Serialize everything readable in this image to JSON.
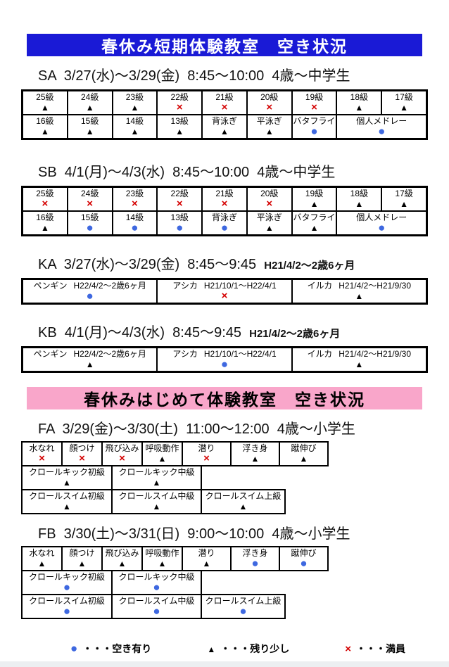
{
  "banners": {
    "short_term": "春休み短期体験教室　空き状況",
    "beginner": "春休みはじめて体験教室　空き状況"
  },
  "colors": {
    "short_term_banner": "#1a1ad6",
    "beginner_banner": "#f9a6ca",
    "available_circle": "#3e68e0",
    "few_triangle": "#000000",
    "full_cross": "#d40000"
  },
  "sections": {
    "sa": {
      "title": "SA  3/27(水)～3/29(金)  8:45～10:00  ",
      "age": "4歳～中学生",
      "row1": [
        {
          "label": "25級",
          "status": "triangle"
        },
        {
          "label": "24級",
          "status": "triangle"
        },
        {
          "label": "23級",
          "status": "triangle"
        },
        {
          "label": "22級",
          "status": "cross"
        },
        {
          "label": "21級",
          "status": "cross"
        },
        {
          "label": "20級",
          "status": "cross"
        },
        {
          "label": "19級",
          "status": "cross"
        },
        {
          "label": "18級",
          "status": "triangle"
        },
        {
          "label": "17級",
          "status": "triangle"
        }
      ],
      "row2": [
        {
          "label": "16級",
          "status": "triangle"
        },
        {
          "label": "15級",
          "status": "triangle"
        },
        {
          "label": "14級",
          "status": "triangle"
        },
        {
          "label": "13級",
          "status": "triangle"
        },
        {
          "label": "背泳ぎ",
          "status": "triangle"
        },
        {
          "label": "平泳ぎ",
          "status": "triangle"
        },
        {
          "label": "バタフライ",
          "status": "circle"
        },
        {
          "label": "個人メドレー",
          "status": "circle"
        }
      ]
    },
    "sb": {
      "title": "SB  4/1(月)～4/3(水)  8:45～10:00  ",
      "age": "4歳～中学生",
      "row1": [
        {
          "label": "25級",
          "status": "cross"
        },
        {
          "label": "24級",
          "status": "cross"
        },
        {
          "label": "23級",
          "status": "cross"
        },
        {
          "label": "22級",
          "status": "cross"
        },
        {
          "label": "21級",
          "status": "cross"
        },
        {
          "label": "20級",
          "status": "cross"
        },
        {
          "label": "19級",
          "status": "triangle"
        },
        {
          "label": "18級",
          "status": "triangle"
        },
        {
          "label": "17級",
          "status": "triangle"
        }
      ],
      "row2": [
        {
          "label": "16級",
          "status": "triangle"
        },
        {
          "label": "15級",
          "status": "circle"
        },
        {
          "label": "14級",
          "status": "circle"
        },
        {
          "label": "13級",
          "status": "circle"
        },
        {
          "label": "背泳ぎ",
          "status": "circle"
        },
        {
          "label": "平泳ぎ",
          "status": "triangle"
        },
        {
          "label": "バタフライ",
          "status": "triangle"
        },
        {
          "label": "個人メドレー",
          "status": "circle"
        }
      ]
    },
    "ka": {
      "title": "KA  3/27(水)～3/29(金)  8:45～9:45  ",
      "age": "H21/4/2～2歳6ヶ月",
      "cells": [
        {
          "label": "ペンギン",
          "range": "H22/4/2～2歳6ヶ月",
          "status": "circle"
        },
        {
          "label": "アシカ",
          "range": "H21/10/1～H22/4/1",
          "status": "cross"
        },
        {
          "label": "イルカ",
          "range": "H21/4/2～H21/9/30",
          "status": "triangle"
        }
      ]
    },
    "kb": {
      "title": "KB  4/1(月)～4/3(水)  8:45～9:45  ",
      "age": "H21/4/2～2歳6ヶ月",
      "cells": [
        {
          "label": "ペンギン",
          "range": "H22/4/2～2歳6ヶ月",
          "status": "triangle"
        },
        {
          "label": "アシカ",
          "range": "H21/10/1～H22/4/1",
          "status": "circle"
        },
        {
          "label": "イルカ",
          "range": "H21/4/2～H21/9/30",
          "status": "triangle"
        }
      ]
    },
    "fa": {
      "title": "FA  3/29(金)～3/30(土)  11:00～12:00  ",
      "age": "4歳～小学生",
      "row1": [
        {
          "label": "水なれ",
          "status": "cross"
        },
        {
          "label": "顔つけ",
          "status": "cross"
        },
        {
          "label": "飛び込み",
          "status": "cross"
        },
        {
          "label": "呼吸動作",
          "status": "triangle"
        },
        {
          "label": "潜り",
          "status": "cross"
        },
        {
          "label": "浮き身",
          "status": "triangle"
        },
        {
          "label": "蹴伸び",
          "status": "triangle"
        }
      ],
      "row2": [
        {
          "label": "クロールキック初級",
          "status": "triangle"
        },
        {
          "label": "クロールキック中級",
          "status": "triangle"
        }
      ],
      "row3": [
        {
          "label": "クロールスイム初級",
          "status": "triangle"
        },
        {
          "label": "クロールスイム中級",
          "status": "triangle"
        },
        {
          "label": "クロールスイム上級",
          "status": "triangle"
        }
      ]
    },
    "fb": {
      "title": "FB  3/30(土)～3/31(日)  9:00～10:00  ",
      "age": "4歳～小学生",
      "row1": [
        {
          "label": "水なれ",
          "status": "triangle"
        },
        {
          "label": "顔つけ",
          "status": "triangle"
        },
        {
          "label": "飛び込み",
          "status": "triangle"
        },
        {
          "label": "呼吸動作",
          "status": "triangle"
        },
        {
          "label": "潜り",
          "status": "triangle"
        },
        {
          "label": "浮き身",
          "status": "circle"
        },
        {
          "label": "蹴伸び",
          "status": "circle"
        }
      ],
      "row2": [
        {
          "label": "クロールキック初級",
          "status": "circle"
        },
        {
          "label": "クロールキック中級",
          "status": "circle"
        }
      ],
      "row3": [
        {
          "label": "クロールスイム初級",
          "status": "circle"
        },
        {
          "label": "クロールスイム中級",
          "status": "circle"
        },
        {
          "label": "クロールスイム上級",
          "status": "circle"
        }
      ]
    }
  },
  "legend": {
    "items": [
      {
        "status": "circle",
        "label": "・・・空き有り"
      },
      {
        "status": "triangle",
        "label": "・・・残り少し"
      },
      {
        "status": "cross",
        "label": "・・・満員"
      }
    ]
  }
}
